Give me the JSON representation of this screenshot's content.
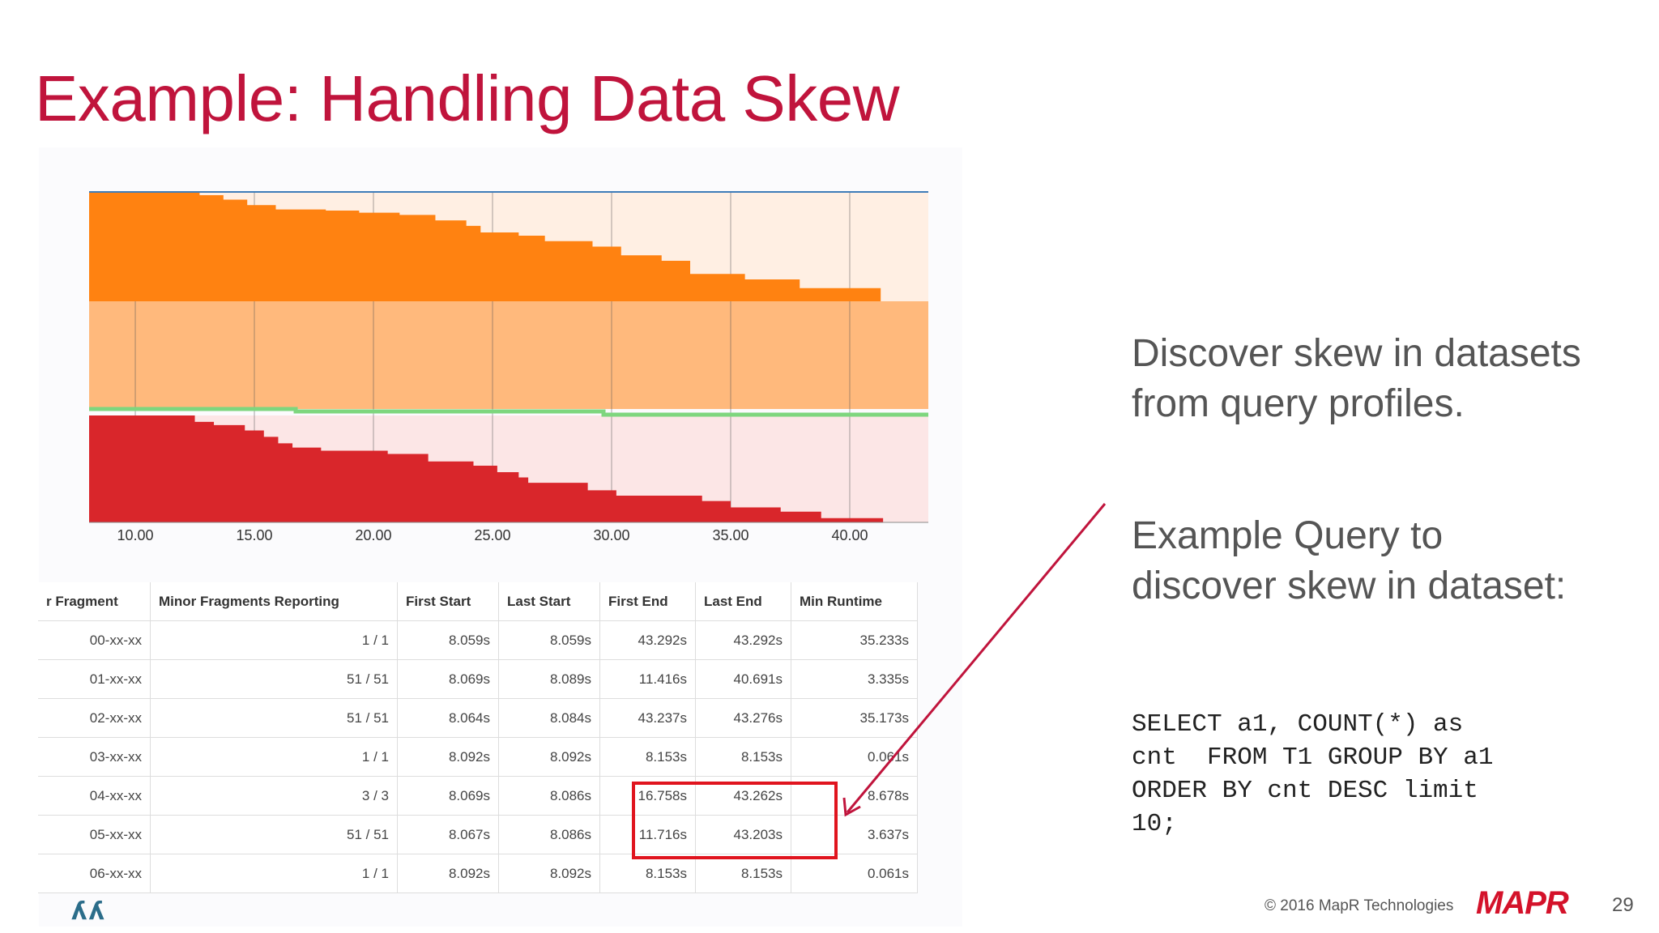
{
  "slide": {
    "title": "Example: Handling Data Skew",
    "page_number": "29",
    "copyright": "© 2016 MapR Technologies",
    "logo_text": "MAPR",
    "corner_mark": "ʎʎ"
  },
  "side_text": {
    "para1": "Discover skew in datasets from query profiles.",
    "para2": "Example Query to discover skew in dataset:",
    "code": "SELECT a1, COUNT(*) as\ncnt  FROM T1 GROUP BY a1\nORDER BY cnt DESC limit\n10;"
  },
  "colors": {
    "title": "#c0143c",
    "orange": "#ff8211",
    "orange_light": "#ffb97c",
    "orange_pale": "#ffefe3",
    "red": "#d9262b",
    "red_pale": "#fce6e6",
    "green": "#7ed67e",
    "highlight": "#e0141e"
  },
  "chart_data": {
    "type": "area",
    "title": "",
    "xlabel": "",
    "ylabel": "",
    "x_ticks": [
      "10.00",
      "15.00",
      "20.00",
      "25.00",
      "30.00",
      "35.00",
      "40.00"
    ],
    "xlim": [
      8.06,
      43.3
    ],
    "series": [
      {
        "color": "#ff8211",
        "band": "upper",
        "steps": [
          [
            8.06,
            1.0
          ],
          [
            11.9,
            1.0
          ],
          [
            12.7,
            0.97
          ],
          [
            13.7,
            0.93
          ],
          [
            14.7,
            0.88
          ],
          [
            15.9,
            0.84
          ],
          [
            18.0,
            0.83
          ],
          [
            19.4,
            0.81
          ],
          [
            21.1,
            0.79
          ],
          [
            22.6,
            0.74
          ],
          [
            23.9,
            0.69
          ],
          [
            24.5,
            0.63
          ],
          [
            26.1,
            0.6
          ],
          [
            27.2,
            0.55
          ],
          [
            29.2,
            0.5
          ],
          [
            30.4,
            0.42
          ],
          [
            32.1,
            0.37
          ],
          [
            33.3,
            0.25
          ],
          [
            35.6,
            0.2
          ],
          [
            37.9,
            0.12
          ],
          [
            41.3,
            0.0
          ]
        ]
      },
      {
        "color": "#d9262b",
        "band": "lower",
        "steps": [
          [
            8.06,
            1.0
          ],
          [
            11.5,
            1.0
          ],
          [
            12.5,
            0.94
          ],
          [
            13.3,
            0.91
          ],
          [
            14.6,
            0.86
          ],
          [
            15.4,
            0.8
          ],
          [
            16.0,
            0.74
          ],
          [
            16.6,
            0.7
          ],
          [
            17.8,
            0.67
          ],
          [
            20.6,
            0.64
          ],
          [
            22.3,
            0.57
          ],
          [
            24.2,
            0.53
          ],
          [
            25.2,
            0.47
          ],
          [
            26.1,
            0.42
          ],
          [
            26.5,
            0.37
          ],
          [
            29.0,
            0.3
          ],
          [
            30.2,
            0.25
          ],
          [
            33.8,
            0.2
          ],
          [
            35.0,
            0.14
          ],
          [
            37.1,
            0.1
          ],
          [
            38.8,
            0.04
          ],
          [
            41.4,
            0.0
          ]
        ]
      }
    ],
    "bands": [
      {
        "color": "#ffefe3"
      },
      {
        "color": "#ffb97c"
      },
      {
        "color": "#fce6e6"
      }
    ]
  },
  "table": {
    "headers": [
      "r Fragment",
      "Minor Fragments Reporting",
      "First Start",
      "Last Start",
      "First End",
      "Last End",
      "Min Runtime"
    ],
    "rows": [
      [
        "00-xx-xx",
        "1 / 1",
        "8.059s",
        "8.059s",
        "43.292s",
        "43.292s",
        "35.233s"
      ],
      [
        "01-xx-xx",
        "51 / 51",
        "8.069s",
        "8.089s",
        "11.416s",
        "40.691s",
        "3.335s"
      ],
      [
        "02-xx-xx",
        "51 / 51",
        "8.064s",
        "8.084s",
        "43.237s",
        "43.276s",
        "35.173s"
      ],
      [
        "03-xx-xx",
        "1 / 1",
        "8.092s",
        "8.092s",
        "8.153s",
        "8.153s",
        "0.061s"
      ],
      [
        "04-xx-xx",
        "3 / 3",
        "8.069s",
        "8.086s",
        "16.758s",
        "43.262s",
        "8.678s"
      ],
      [
        "05-xx-xx",
        "51 / 51",
        "8.067s",
        "8.086s",
        "11.716s",
        "43.203s",
        "3.637s"
      ],
      [
        "06-xx-xx",
        "1 / 1",
        "8.092s",
        "8.092s",
        "8.153s",
        "8.153s",
        "0.061s"
      ]
    ]
  }
}
